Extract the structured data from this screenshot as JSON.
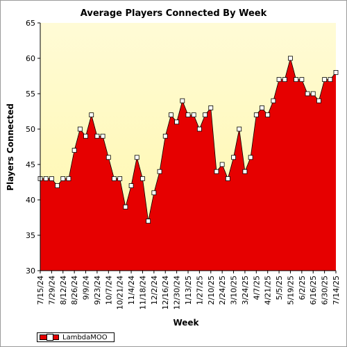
{
  "chart_data": {
    "type": "area",
    "title": "Average Players Connected By Week",
    "xlabel": "Week",
    "ylabel": "Players Connected",
    "ylim": [
      30,
      65
    ],
    "yticks": [
      30,
      35,
      40,
      45,
      50,
      55,
      60,
      65
    ],
    "x_tick_labels": [
      "7/15/24",
      "7/29/24",
      "8/12/24",
      "8/26/24",
      "9/9/24",
      "9/23/24",
      "10/7/24",
      "10/21/24",
      "11/4/24",
      "11/18/24",
      "12/2/24",
      "12/16/24",
      "12/30/24",
      "1/13/25",
      "1/27/25",
      "2/10/25",
      "2/24/25",
      "3/10/25",
      "3/24/25",
      "4/7/25",
      "4/21/25",
      "5/5/25",
      "5/19/25",
      "6/2/25",
      "6/16/25",
      "6/30/25",
      "7/14/25"
    ],
    "grid": false,
    "legend_position": "bottom-left",
    "colors": {
      "fill": "#e60000",
      "background_top": "#fffbd6",
      "background_bottom": "#fff7a8"
    },
    "series": [
      {
        "name": "LambdaMOO",
        "values": [
          43,
          43,
          43,
          42,
          43,
          43,
          47,
          50,
          49,
          52,
          49,
          49,
          46,
          43,
          43,
          39,
          42,
          46,
          43,
          37,
          41,
          44,
          49,
          52,
          51,
          54,
          52,
          52,
          50,
          52,
          53,
          44,
          45,
          43,
          46,
          50,
          44,
          46,
          52,
          53,
          52,
          54,
          57,
          57,
          60,
          57,
          57,
          55,
          55,
          54,
          57,
          57,
          58
        ]
      }
    ]
  }
}
